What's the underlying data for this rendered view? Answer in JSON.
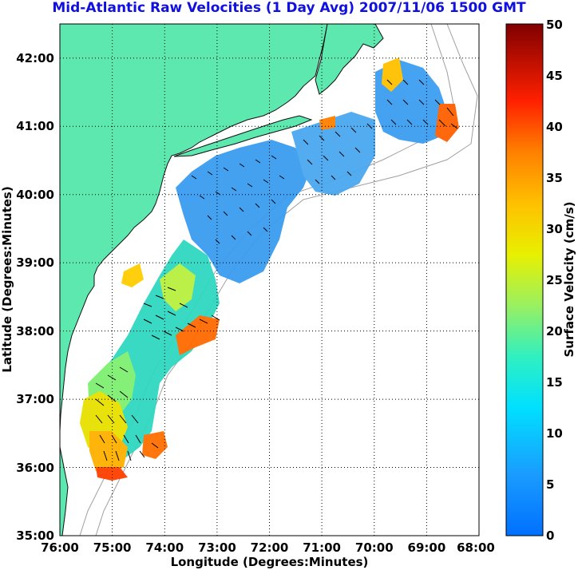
{
  "title": "Mid-Atlantic Raw Velocities (1 Day Avg) 2007/11/06 1500 GMT",
  "map": {
    "x_label": "Longitude (Degrees:Minutes)",
    "y_label": "Latitude (Degrees:Minutes)",
    "lon_ticks": [
      "76:00",
      "75:00",
      "74:00",
      "73:00",
      "72:00",
      "71:00",
      "70:00",
      "69:00",
      "68:00"
    ],
    "lat_ticks": [
      "42:00",
      "41:00",
      "40:00",
      "39:00",
      "38:00",
      "37:00",
      "36:00",
      "35:00"
    ],
    "lon_range": [
      -76,
      -68
    ],
    "lat_range": [
      35,
      42.5
    ],
    "land_color": "#5de8b0",
    "grid": "dotted"
  },
  "colorbar": {
    "label": "Surface Velocity (cm/s)",
    "ticks": [
      "50",
      "45",
      "40",
      "35",
      "30",
      "25",
      "20",
      "15",
      "10",
      "5",
      "0"
    ],
    "range": [
      0,
      50
    ],
    "colormap": "jet"
  }
}
